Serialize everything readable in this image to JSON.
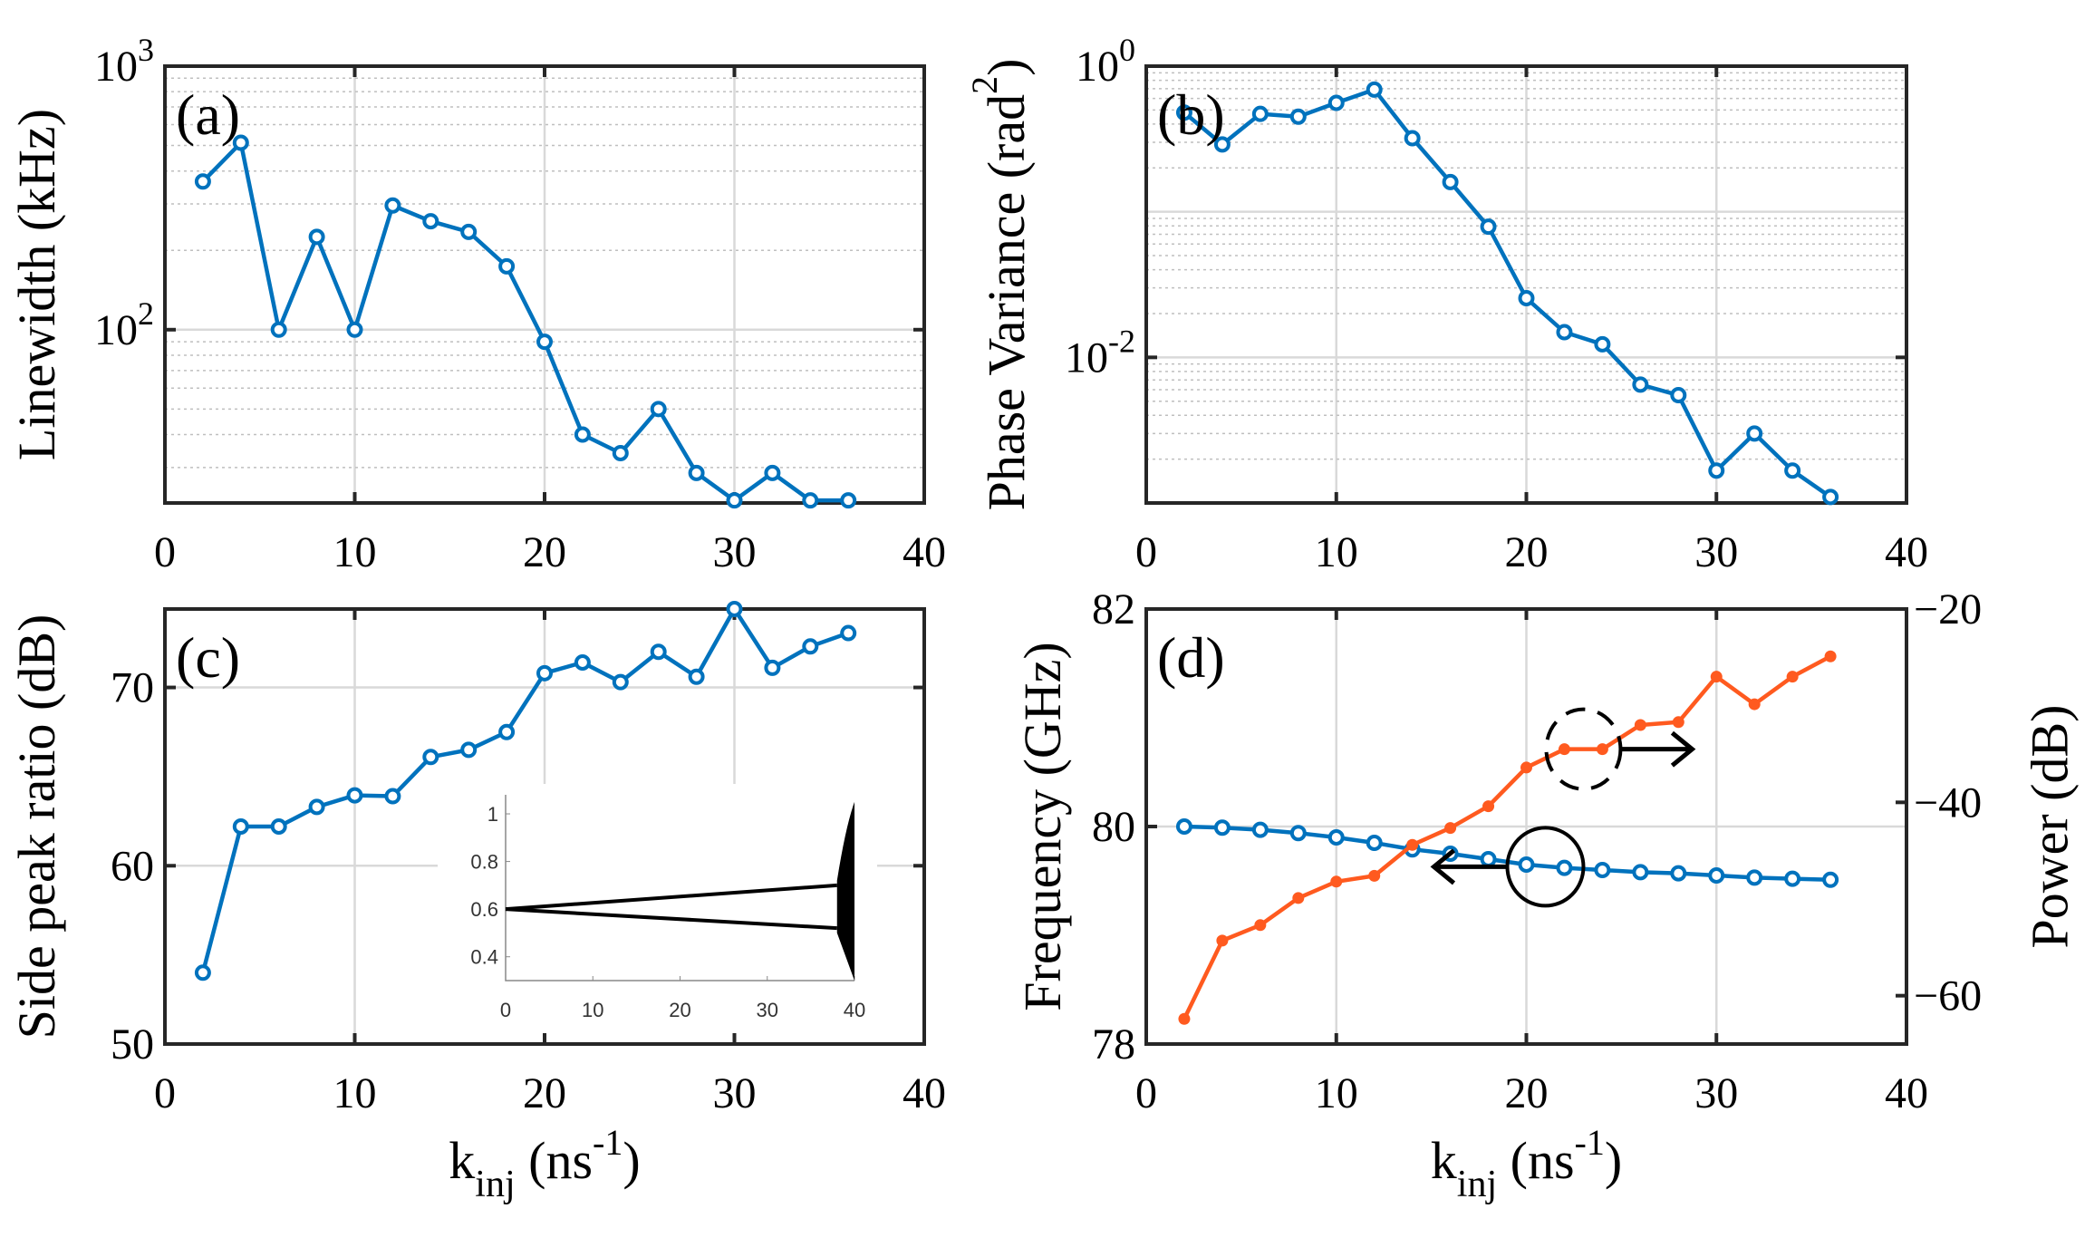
{
  "colors": {
    "blue": "#0072BD",
    "orange": "#FF5A1F",
    "grid": "#d9d9d9",
    "axis": "#262626"
  },
  "chart_data": [
    {
      "id": "a",
      "type": "line",
      "panel_label": "(a)",
      "ylabel": "Linewidth (kHz)",
      "xlabel": "",
      "yscale": "log",
      "xlim": [
        0,
        40
      ],
      "ylim": [
        22,
        1000
      ],
      "xticks": [
        "0",
        "10",
        "20",
        "30",
        "40"
      ],
      "yticks": [
        {
          "value": 100,
          "base": "10",
          "exp": "2"
        },
        {
          "value": 1000,
          "base": "10",
          "exp": "3"
        }
      ],
      "x": [
        2,
        4,
        6,
        8,
        10,
        12,
        14,
        16,
        18,
        20,
        22,
        24,
        26,
        28,
        30,
        32,
        34,
        36
      ],
      "series": [
        {
          "name": "Linewidth",
          "color": "#0072BD",
          "marker": "circle",
          "values": [
            365,
            512,
            100,
            225,
            100,
            296,
            258,
            235,
            174,
            90,
            40,
            34,
            50,
            28.6,
            22.5,
            28.6,
            22.5,
            22.5
          ]
        }
      ]
    },
    {
      "id": "b",
      "type": "line",
      "panel_label": "(b)",
      "ylabel": "Phase Variance (rad",
      "ylabel_sup": "2",
      "ylabel_end": ")",
      "xlabel": "",
      "yscale": "log",
      "xlim": [
        0,
        40
      ],
      "ylim": [
        0.001,
        1
      ],
      "xticks": [
        "0",
        "10",
        "20",
        "30",
        "40"
      ],
      "yticks": [
        {
          "value": 0.01,
          "base": "10",
          "exp": "-2"
        },
        {
          "value": 1,
          "base": "10",
          "exp": "0"
        }
      ],
      "x": [
        2,
        4,
        6,
        8,
        10,
        12,
        14,
        16,
        18,
        20,
        22,
        24,
        26,
        28,
        30,
        32,
        34,
        36
      ],
      "series": [
        {
          "name": "Phase variance",
          "color": "#0072BD",
          "marker": "circle",
          "values": [
            0.48,
            0.29,
            0.47,
            0.45,
            0.56,
            0.69,
            0.32,
            0.16,
            0.079,
            0.0255,
            0.0149,
            0.0123,
            0.0065,
            0.0055,
            0.00167,
            0.003,
            0.00167,
            0.0011
          ]
        }
      ]
    },
    {
      "id": "c",
      "type": "line",
      "panel_label": "(c)",
      "ylabel": "Side peak ratio (dB)",
      "xlabel": "k",
      "xlabel_sub": "inj",
      "xlabel_rest": " (ns",
      "xlabel_sup": "-1",
      "xlabel_end": ")",
      "yscale": "linear",
      "xlim": [
        0,
        40
      ],
      "ylim": [
        50,
        74.4
      ],
      "xticks": [
        "0",
        "10",
        "20",
        "30",
        "40"
      ],
      "yticks": [
        {
          "value": 50,
          "label": "50"
        },
        {
          "value": 60,
          "label": "60"
        },
        {
          "value": 70,
          "label": "70"
        }
      ],
      "x": [
        2,
        4,
        6,
        8,
        10,
        12,
        14,
        16,
        18,
        20,
        22,
        24,
        26,
        28,
        30,
        32,
        34,
        36
      ],
      "series": [
        {
          "name": "Side peak ratio",
          "color": "#0072BD",
          "marker": "circle",
          "values": [
            54.0,
            62.2,
            62.2,
            63.3,
            63.95,
            63.9,
            66.1,
            66.5,
            67.5,
            70.8,
            71.4,
            70.3,
            72.0,
            70.6,
            74.4,
            71.1,
            72.3,
            73.05
          ]
        }
      ],
      "inset": {
        "type": "bifurcation",
        "xlim": [
          0,
          40
        ],
        "ylim": [
          0.3,
          1.08
        ],
        "xticks": [
          "0",
          "10",
          "20",
          "30",
          "40"
        ],
        "yticks": [
          "0.4",
          "0.6",
          "0.8",
          "1"
        ],
        "branches": [
          {
            "x": [
              0,
              38
            ],
            "y": [
              0.6,
              0.7
            ]
          },
          {
            "x": [
              0,
              38
            ],
            "y": [
              0.6,
              0.52
            ]
          }
        ],
        "chaotic_region": {
          "x": [
            38,
            40
          ],
          "y": [
            0.3,
            1.05
          ]
        }
      }
    },
    {
      "id": "d",
      "type": "line",
      "panel_label": "(d)",
      "ylabel": "Frequency (GHz)",
      "ylabel_right": "Power (dB)",
      "xlabel": "k",
      "xlabel_sub": "inj",
      "xlabel_rest": " (ns",
      "xlabel_sup": "-1",
      "xlabel_end": ")",
      "yscale": "linear",
      "xlim": [
        0,
        40
      ],
      "ylim": [
        78,
        82
      ],
      "ylim_right": [
        -65,
        -20
      ],
      "xticks": [
        "0",
        "10",
        "20",
        "30",
        "40"
      ],
      "yticks": [
        {
          "value": 78,
          "label": "78"
        },
        {
          "value": 80,
          "label": "80"
        },
        {
          "value": 82,
          "label": "82"
        }
      ],
      "yticks_right": [
        {
          "value": -60,
          "label": "-60"
        },
        {
          "value": -40,
          "label": "-40"
        },
        {
          "value": -20,
          "label": "-20"
        }
      ],
      "x": [
        2,
        4,
        6,
        8,
        10,
        12,
        14,
        16,
        18,
        20,
        22,
        24,
        26,
        28,
        30,
        32,
        34,
        36
      ],
      "series": [
        {
          "name": "Frequency",
          "axis": "left",
          "color": "#0072BD",
          "marker": "circle",
          "values": [
            80.0,
            79.99,
            79.97,
            79.94,
            79.9,
            79.85,
            79.79,
            79.75,
            79.7,
            79.65,
            79.62,
            79.6,
            79.58,
            79.57,
            79.55,
            79.53,
            79.52,
            79.51
          ]
        },
        {
          "name": "Power",
          "axis": "right",
          "color": "#FF5A1F",
          "marker": "dot",
          "values": [
            -62.4,
            -54.3,
            -52.7,
            -49.9,
            -48.2,
            -47.6,
            -44.4,
            -42.65,
            -40.4,
            -36.4,
            -34.5,
            -34.5,
            -32.0,
            -31.7,
            -27.0,
            -29.85,
            -27.0,
            -24.9
          ]
        }
      ],
      "annotations": [
        {
          "type": "dashed-circle",
          "points_to": "right axis",
          "x": 23,
          "y_right": -34.5
        },
        {
          "type": "solid-circle",
          "points_to": "left axis",
          "x": 21,
          "y": 79.63
        }
      ]
    }
  ]
}
